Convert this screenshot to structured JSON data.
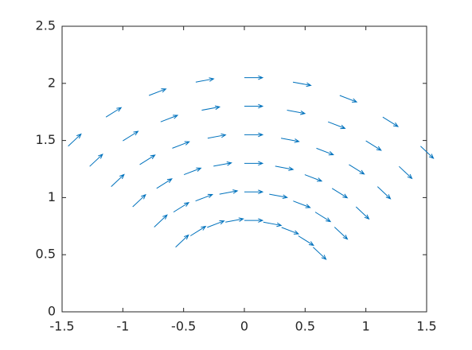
{
  "chart_data": {
    "type": "quiver",
    "color": "#0072bd",
    "xlim": [
      -1.5,
      1.5
    ],
    "xticks": [
      -1.5,
      -1,
      -0.5,
      0,
      0.5,
      1,
      1.5
    ],
    "ylim": [
      0,
      2.5
    ],
    "yticks": [
      0,
      0.5,
      1,
      1.5,
      2,
      2.5
    ],
    "x": [
      -0.566,
      -0.444,
      -0.306,
      -0.156,
      0,
      0.156,
      0.306,
      0.444,
      0.566,
      -0.742,
      -0.583,
      -0.402,
      -0.205,
      0,
      0.205,
      0.402,
      0.583,
      0.742,
      -0.919,
      -0.722,
      -0.497,
      -0.254,
      0,
      0.254,
      0.497,
      0.722,
      0.919,
      -1.096,
      -0.861,
      -0.593,
      -0.302,
      0,
      0.302,
      0.593,
      0.861,
      1.096,
      -1.273,
      -1.0,
      -0.689,
      -0.351,
      0,
      0.351,
      0.689,
      1.0,
      1.273,
      -1.45,
      -1.139,
      -0.785,
      -0.4,
      0,
      0.4,
      0.785,
      1.139,
      1.45
    ],
    "y": [
      0.566,
      0.665,
      0.739,
      0.785,
      0.8,
      0.785,
      0.739,
      0.665,
      0.566,
      0.742,
      0.873,
      0.97,
      1.03,
      1.05,
      1.03,
      0.97,
      0.873,
      0.742,
      0.919,
      1.081,
      1.201,
      1.275,
      1.3,
      1.275,
      1.201,
      1.081,
      0.919,
      1.096,
      1.289,
      1.432,
      1.52,
      1.55,
      1.52,
      1.432,
      1.289,
      1.096,
      1.273,
      1.497,
      1.663,
      1.765,
      1.8,
      1.765,
      1.663,
      1.497,
      1.273,
      1.45,
      1.705,
      1.894,
      2.011,
      2.05,
      2.011,
      1.894,
      1.705,
      1.45
    ],
    "u": [
      0.106,
      0.125,
      0.139,
      0.147,
      0.15,
      0.147,
      0.139,
      0.125,
      0.106,
      0.106,
      0.125,
      0.139,
      0.147,
      0.15,
      0.147,
      0.139,
      0.125,
      0.106,
      0.106,
      0.125,
      0.139,
      0.147,
      0.15,
      0.147,
      0.139,
      0.125,
      0.106,
      0.106,
      0.125,
      0.139,
      0.147,
      0.15,
      0.147,
      0.139,
      0.125,
      0.106,
      0.106,
      0.125,
      0.139,
      0.147,
      0.15,
      0.147,
      0.139,
      0.125,
      0.106,
      0.106,
      0.125,
      0.139,
      0.147,
      0.15,
      0.147,
      0.139,
      0.125,
      0.106
    ],
    "v": [
      0.106,
      0.083,
      0.057,
      0.029,
      0,
      -0.029,
      -0.057,
      -0.083,
      -0.106,
      0.106,
      0.083,
      0.057,
      0.029,
      0,
      -0.029,
      -0.057,
      -0.083,
      -0.106,
      0.106,
      0.083,
      0.057,
      0.029,
      0,
      -0.029,
      -0.057,
      -0.083,
      -0.106,
      0.106,
      0.083,
      0.057,
      0.029,
      0,
      -0.029,
      -0.057,
      -0.083,
      -0.106,
      0.106,
      0.083,
      0.057,
      0.029,
      0,
      -0.029,
      -0.057,
      -0.083,
      -0.106,
      0.106,
      0.083,
      0.057,
      0.029,
      0,
      -0.029,
      -0.057,
      -0.083,
      -0.106
    ]
  }
}
